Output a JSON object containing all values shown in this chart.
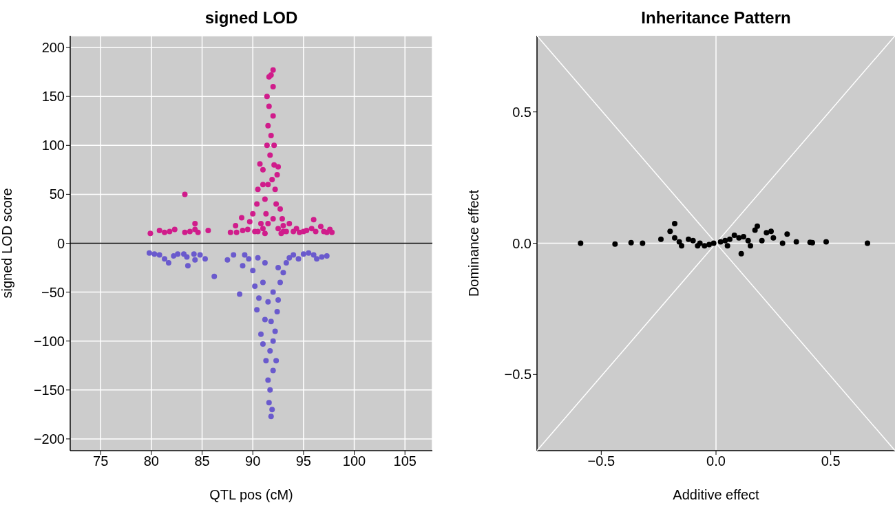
{
  "chart_data": [
    {
      "type": "scatter",
      "title": "signed LOD",
      "xlabel": "QTL pos (cM)",
      "ylabel": "signed LOD score",
      "marker": "circle",
      "grid": true,
      "xlim": [
        72,
        107.7
      ],
      "xticks": [
        75,
        80,
        85,
        90,
        95,
        100,
        105
      ],
      "ylim": [
        -212,
        212
      ],
      "yticks": [
        {
          "value": -200,
          "label": "−200"
        },
        {
          "value": -150,
          "label": "−150"
        },
        {
          "value": -100,
          "label": "−100"
        },
        {
          "value": -50,
          "label": "−50"
        },
        0,
        50,
        100,
        150,
        200
      ],
      "ref_lines": [
        {
          "axis": "y",
          "value": 0,
          "color": "#000000"
        }
      ],
      "series": [
        {
          "color": "#d01c8b",
          "x": [
            79.9,
            80.8,
            81.3,
            81.8,
            82.3,
            83.3,
            83.3,
            83.8,
            84.3,
            84.3,
            84.6,
            85.6,
            87.8,
            88.3,
            88.4,
            88.9,
            89.0,
            89.5,
            89.7,
            90.0,
            90.2,
            90.4,
            90.5,
            90.7,
            90.8,
            91.0,
            91.0,
            91.2,
            91.3,
            91.4,
            91.4,
            91.5,
            91.5,
            91.6,
            91.6,
            91.7,
            91.8,
            91.8,
            91.9,
            92.0,
            92.0,
            92.0,
            92.1,
            92.1,
            92.2,
            92.3,
            92.4,
            92.5,
            92.7,
            92.9,
            93.0,
            93.3,
            93.6,
            94.0,
            94.3,
            94.6,
            95.0,
            95.3,
            95.8,
            96.0,
            96.2,
            96.7,
            97.0,
            97.3,
            97.6,
            97.8,
            90.5,
            91.0,
            91.5,
            92.0,
            92.5,
            93.0,
            91.2,
            92.8
          ],
          "values": [
            10,
            13,
            11,
            12,
            14,
            50,
            11,
            12,
            20,
            14,
            11,
            13,
            11,
            18,
            11,
            26,
            13,
            14,
            22,
            30,
            12,
            40,
            55,
            81,
            20,
            60,
            75,
            45,
            30,
            150,
            100,
            120,
            60,
            170,
            140,
            90,
            172,
            110,
            65,
            177,
            160,
            130,
            100,
            80,
            55,
            40,
            70,
            78,
            35,
            25,
            18,
            12,
            20,
            12,
            15,
            11,
            12,
            13,
            15,
            24,
            12,
            17,
            12,
            11,
            14,
            11,
            12,
            15,
            20,
            25,
            15,
            12,
            10,
            10
          ]
        },
        {
          "color": "#6a5acd",
          "x": [
            79.8,
            80.3,
            80.8,
            81.3,
            81.7,
            82.2,
            82.6,
            83.2,
            83.5,
            83.6,
            84.2,
            84.3,
            84.8,
            85.3,
            86.2,
            87.5,
            88.1,
            88.7,
            89.0,
            89.2,
            89.6,
            90.0,
            90.2,
            90.4,
            90.6,
            90.8,
            91.0,
            91.2,
            91.3,
            91.5,
            91.6,
            91.7,
            91.8,
            91.9,
            92.0,
            92.0,
            92.2,
            92.3,
            92.4,
            92.5,
            92.7,
            93.0,
            93.3,
            93.6,
            94.0,
            94.5,
            95.0,
            95.5,
            96.0,
            96.3,
            96.8,
            97.3,
            91.0,
            91.5,
            92.0,
            91.2,
            92.5,
            90.5,
            91.8,
            91.7
          ],
          "values": [
            -10,
            -11,
            -12,
            -16,
            -20,
            -13,
            -11,
            -11,
            -14,
            -23,
            -11,
            -17,
            -12,
            -16,
            -34,
            -17,
            -12,
            -52,
            -23,
            -12,
            -16,
            -28,
            -44,
            -68,
            -56,
            -93,
            -103,
            -78,
            -120,
            -140,
            -163,
            -150,
            -177,
            -170,
            -130,
            -100,
            -90,
            -120,
            -70,
            -58,
            -40,
            -30,
            -20,
            -15,
            -12,
            -16,
            -11,
            -10,
            -12,
            -16,
            -14,
            -13,
            -40,
            -60,
            -50,
            -20,
            -25,
            -15,
            -80,
            -110
          ]
        }
      ]
    },
    {
      "type": "scatter",
      "title": "Inheritance Pattern",
      "xlabel": "Additive effect",
      "ylabel": "Dominance effect",
      "marker": "circle",
      "xlim": [
        -0.78,
        0.78
      ],
      "xticks": [
        {
          "value": -0.5,
          "label": "−0.5"
        },
        {
          "value": 0,
          "label": "0.0"
        },
        0.5
      ],
      "ylim": [
        -0.79,
        0.79
      ],
      "yticks": [
        {
          "value": -0.5,
          "label": "−0.5"
        },
        {
          "value": 0,
          "label": "0.0"
        },
        0.5
      ],
      "ref_lines": [
        {
          "axis": "x",
          "value": 0,
          "color": "#ffffff"
        },
        {
          "axis": "y",
          "value": 0,
          "color": "#ffffff"
        }
      ],
      "series": [
        {
          "type": "line",
          "marker": "none",
          "color": "#ffffff",
          "x": [
            -0.78,
            0.78
          ],
          "values": [
            0.79,
            -0.79
          ]
        },
        {
          "type": "line",
          "marker": "none",
          "color": "#ffffff",
          "x": [
            -0.78,
            0.78
          ],
          "values": [
            -0.79,
            0.79
          ]
        },
        {
          "color": "#000000",
          "x": [
            -0.59,
            -0.44,
            -0.37,
            -0.32,
            -0.24,
            -0.2,
            -0.18,
            -0.18,
            -0.16,
            -0.15,
            -0.12,
            -0.1,
            -0.08,
            -0.07,
            -0.05,
            -0.03,
            -0.01,
            0.02,
            0.04,
            0.05,
            0.06,
            0.08,
            0.1,
            0.11,
            0.12,
            0.14,
            0.15,
            0.17,
            0.18,
            0.2,
            0.22,
            0.24,
            0.25,
            0.29,
            0.31,
            0.35,
            0.41,
            0.42,
            0.48,
            0.66
          ],
          "values": [
            0,
            -0.003,
            0.002,
            0,
            0.015,
            0.045,
            0.075,
            0.02,
            0.005,
            -0.01,
            0.015,
            0.01,
            -0.01,
            0,
            -0.01,
            -0.005,
            0,
            0.005,
            0.01,
            -0.01,
            0.015,
            0.03,
            0.02,
            -0.04,
            0.025,
            0.01,
            -0.01,
            0.05,
            0.065,
            0.01,
            0.04,
            0.045,
            0.02,
            0,
            0.035,
            0.005,
            0.003,
            0.002,
            0.005,
            0
          ]
        }
      ]
    }
  ]
}
